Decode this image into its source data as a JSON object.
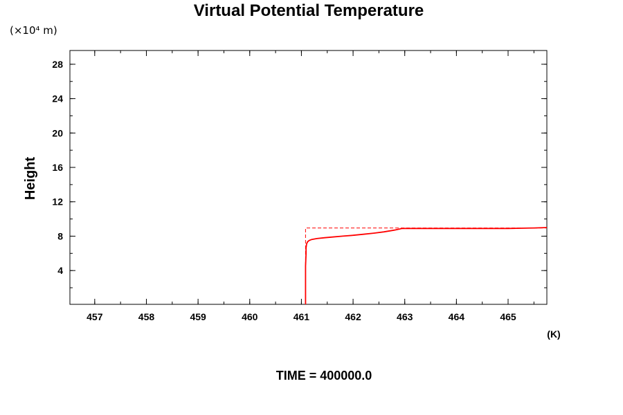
{
  "chart_data": {
    "type": "line",
    "title": "Virtual Potential Temperature",
    "ylabel": "Height",
    "y_scale_note": "(×10⁴ m)",
    "xunit": "(K)",
    "footer": "TIME = 400000.0",
    "xlim": [
      456.52,
      465.75
    ],
    "ylim": [
      0.07,
      29.6
    ],
    "x_major_ticks": [
      457,
      458,
      459,
      460,
      461,
      462,
      463,
      464,
      465
    ],
    "x_tick_labels": [
      "457",
      "458",
      "459",
      "460",
      "461",
      "462",
      "463",
      "464",
      "465"
    ],
    "y_major_ticks": [
      4,
      8,
      12,
      16,
      20,
      24,
      28
    ],
    "y_tick_labels": [
      "4",
      "8",
      "12",
      "16",
      "20",
      "24",
      "28"
    ],
    "y_minor_step": 2,
    "x_minor_step": 0.5,
    "colors": {
      "series": "#ff0000",
      "axis": "#000000"
    },
    "series": [
      {
        "style": "solid",
        "x": [
          461.08,
          461.08,
          461.08,
          461.09,
          461.09,
          461.1,
          461.12,
          461.15,
          461.2,
          461.3,
          461.45,
          461.6,
          461.8,
          462.0,
          462.2,
          462.4,
          462.6,
          462.8,
          462.95,
          463.5,
          464.0,
          464.5,
          465.0,
          465.5,
          465.75
        ],
        "y": [
          0.07,
          2.3,
          4.5,
          5.9,
          6.6,
          7.1,
          7.35,
          7.5,
          7.62,
          7.72,
          7.82,
          7.9,
          8.0,
          8.1,
          8.22,
          8.35,
          8.5,
          8.7,
          8.9,
          8.9,
          8.9,
          8.9,
          8.9,
          8.95,
          9.0
        ]
      },
      {
        "style": "dashed",
        "x": [
          461.08,
          461.08,
          465.75
        ],
        "y": [
          0.07,
          8.95,
          8.95
        ]
      }
    ]
  }
}
